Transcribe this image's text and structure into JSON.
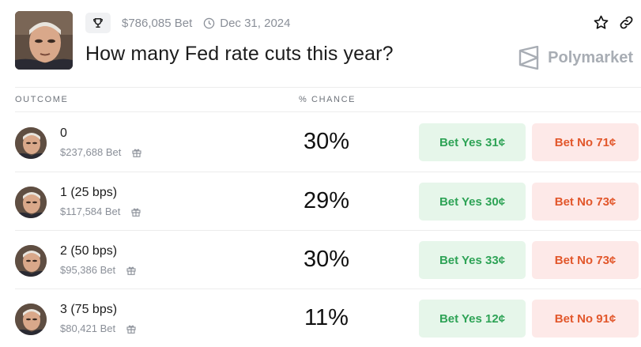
{
  "market": {
    "volume": "$786,085 Bet",
    "end_date": "Dec 31, 2024",
    "title": "How many Fed rate cuts this year?",
    "brand": "Polymarket"
  },
  "table": {
    "col_outcome": "OUTCOME",
    "col_chance": "% CHANCE"
  },
  "outcomes": [
    {
      "name": "0",
      "volume": "$237,688 Bet",
      "chance": "30%",
      "yes": "Bet Yes 31¢",
      "no": "Bet No 71¢"
    },
    {
      "name": "1 (25 bps)",
      "volume": "$117,584 Bet",
      "chance": "29%",
      "yes": "Bet Yes 30¢",
      "no": "Bet No 73¢"
    },
    {
      "name": "2 (50 bps)",
      "volume": "$95,386 Bet",
      "chance": "30%",
      "yes": "Bet Yes 33¢",
      "no": "Bet No 73¢"
    },
    {
      "name": "3 (75 bps)",
      "volume": "$80,421 Bet",
      "chance": "11%",
      "yes": "Bet Yes 12¢",
      "no": "Bet No 91¢"
    }
  ],
  "colors": {
    "yes_bg": "#e6f6ea",
    "yes_text": "#2ea356",
    "no_bg": "#fde9e8",
    "no_text": "#e2572b"
  },
  "icons": [
    "trophy-icon",
    "clock-icon",
    "star-icon",
    "link-icon",
    "polymarket-logo-icon",
    "gift-icon"
  ]
}
